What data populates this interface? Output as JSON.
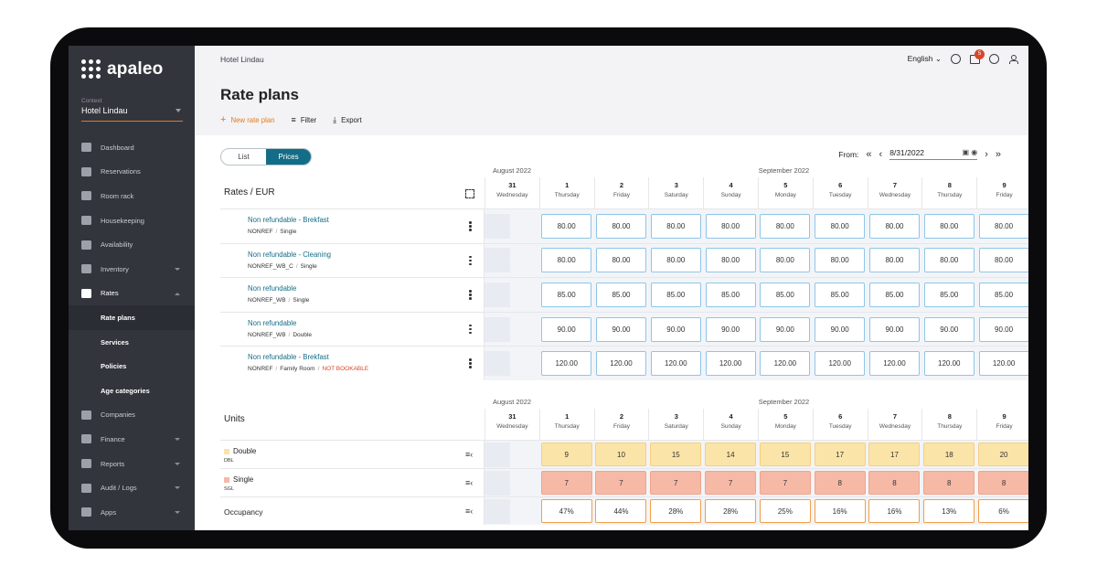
{
  "app": {
    "brand": "apaleo"
  },
  "sidebar": {
    "context_label": "Context",
    "context_value": "Hotel Lindau",
    "items": [
      {
        "label": "Dashboard",
        "icon": "dashboard-icon"
      },
      {
        "label": "Reservations",
        "icon": "reservations-icon"
      },
      {
        "label": "Room rack",
        "icon": "calendar-icon"
      },
      {
        "label": "Housekeeping",
        "icon": "broom-icon"
      },
      {
        "label": "Availability",
        "icon": "availability-icon"
      },
      {
        "label": "Inventory",
        "icon": "bed-icon"
      },
      {
        "label": "Rates",
        "icon": "layers-icon"
      },
      {
        "label": "Rate plans"
      },
      {
        "label": "Services"
      },
      {
        "label": "Policies"
      },
      {
        "label": "Age categories"
      },
      {
        "label": "Companies",
        "icon": "briefcase-icon"
      },
      {
        "label": "Finance",
        "icon": "money-icon"
      },
      {
        "label": "Reports",
        "icon": "report-icon"
      },
      {
        "label": "Audit / Logs",
        "icon": "audit-icon"
      },
      {
        "label": "Apps",
        "icon": "apps-icon"
      }
    ]
  },
  "topbar": {
    "breadcrumb": "Hotel Lindau",
    "language": "English",
    "gift_badge": "5"
  },
  "page": {
    "title": "Rate plans",
    "new_label": "New rate plan",
    "filter_label": "Filter",
    "export_label": "Export"
  },
  "view": {
    "list_label": "List",
    "prices_label": "Prices",
    "from_label": "From:",
    "date_value": "8/31/2022"
  },
  "calendar": {
    "month_a": "August 2022",
    "month_b": "September 2022",
    "days": [
      {
        "num": "31",
        "wd": "Wednesday"
      },
      {
        "num": "1",
        "wd": "Thursday"
      },
      {
        "num": "2",
        "wd": "Friday"
      },
      {
        "num": "3",
        "wd": "Saturday"
      },
      {
        "num": "4",
        "wd": "Sunday"
      },
      {
        "num": "5",
        "wd": "Monday"
      },
      {
        "num": "6",
        "wd": "Tuesday"
      },
      {
        "num": "7",
        "wd": "Wednesday"
      },
      {
        "num": "8",
        "wd": "Thursday"
      },
      {
        "num": "9",
        "wd": "Friday"
      }
    ]
  },
  "rates": {
    "title": "Rates / EUR",
    "rows": [
      {
        "name": "Non refundable - Brekfast",
        "code": "NONREF",
        "unit": "Single",
        "warn": "",
        "prices": [
          "80.00",
          "80.00",
          "80.00",
          "80.00",
          "80.00",
          "80.00",
          "80.00",
          "80.00",
          "80.00"
        ]
      },
      {
        "name": "Non refundable - Cleaning",
        "code": "NONREF_WB_C",
        "unit": "Single",
        "warn": "",
        "prices": [
          "80.00",
          "80.00",
          "80.00",
          "80.00",
          "80.00",
          "80.00",
          "80.00",
          "80.00",
          "80.00"
        ]
      },
      {
        "name": "Non refundable",
        "code": "NONREF_WB",
        "unit": "Single",
        "warn": "",
        "prices": [
          "85.00",
          "85.00",
          "85.00",
          "85.00",
          "85.00",
          "85.00",
          "85.00",
          "85.00",
          "85.00"
        ]
      },
      {
        "name": "Non refundable",
        "code": "NONREF_WB",
        "unit": "Double",
        "warn": "",
        "prices": [
          "90.00",
          "90.00",
          "90.00",
          "90.00",
          "90.00",
          "90.00",
          "90.00",
          "90.00",
          "90.00"
        ]
      },
      {
        "name": "Non refundable - Brekfast",
        "code": "NONREF",
        "unit": "Family Room",
        "warn": "NOT BOOKABLE",
        "prices": [
          "120.00",
          "120.00",
          "120.00",
          "120.00",
          "120.00",
          "120.00",
          "120.00",
          "120.00",
          "120.00"
        ]
      }
    ]
  },
  "units": {
    "title": "Units",
    "rows": [
      {
        "name": "Double",
        "code": "DBL",
        "color": "#fbe4a8",
        "values": [
          "9",
          "10",
          "15",
          "14",
          "15",
          "17",
          "17",
          "18",
          "20"
        ]
      },
      {
        "name": "Single",
        "code": "SGL",
        "color": "#f6b9a5",
        "values": [
          "7",
          "7",
          "7",
          "7",
          "7",
          "8",
          "8",
          "8",
          "8"
        ]
      }
    ],
    "occupancy_label": "Occupancy",
    "occupancy": [
      "47%",
      "44%",
      "28%",
      "28%",
      "25%",
      "16%",
      "16%",
      "13%",
      "6%"
    ]
  }
}
